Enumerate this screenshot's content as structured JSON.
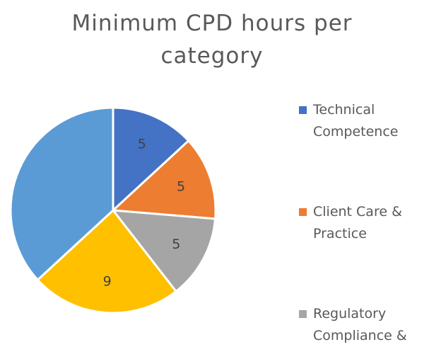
{
  "chart_data": {
    "type": "pie",
    "title": "Minimum CPD hours per category",
    "categories": [
      "Technical Competence",
      "Client Care & Practice",
      "Regulatory Compliance &",
      null,
      null
    ],
    "values": [
      5,
      5,
      5,
      9,
      14
    ],
    "value_labels": [
      "5",
      "5",
      "5",
      "9",
      null
    ],
    "colors": [
      "#4472c4",
      "#ed7d31",
      "#a5a5a5",
      "#ffc000",
      "#5b9bd5"
    ],
    "legend": "right"
  }
}
